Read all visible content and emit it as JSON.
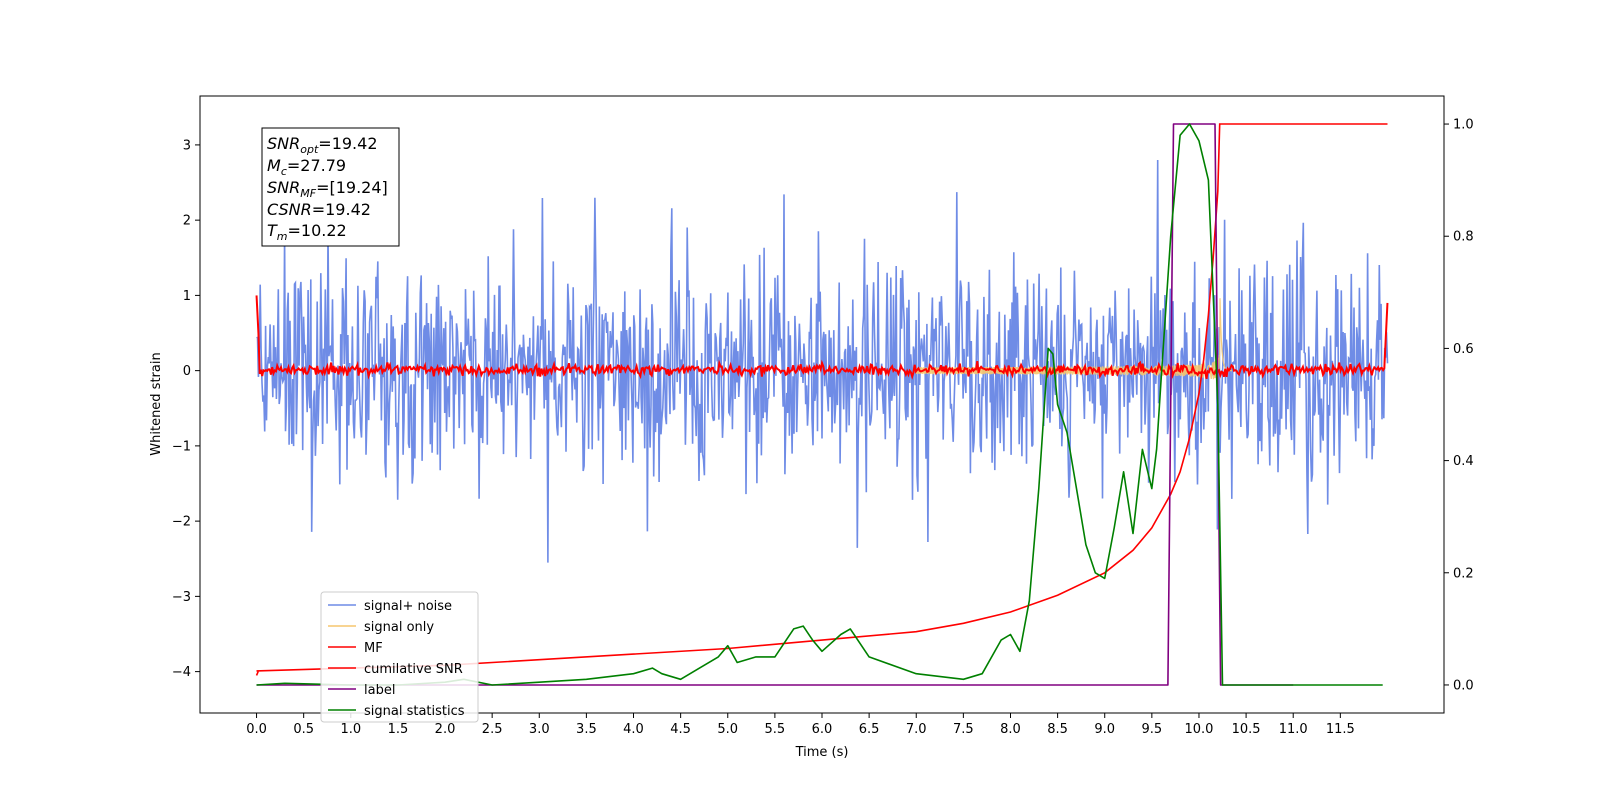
{
  "chart_data": {
    "type": "line",
    "xlabel": "Time (s)",
    "ylabel": "Whitened strain",
    "xlim": [
      -0.6,
      12.6
    ],
    "ylim": [
      -4.55,
      3.65
    ],
    "y2lim": [
      -0.05,
      1.05
    ],
    "x_ticks": [
      "0.0",
      "0.5",
      "1.0",
      "1.5",
      "2.0",
      "2.5",
      "3.0",
      "3.5",
      "4.0",
      "4.5",
      "5.0",
      "5.5",
      "6.0",
      "6.5",
      "7.0",
      "7.5",
      "8.0",
      "8.5",
      "9.0",
      "9.5",
      "10.0",
      "10.5",
      "11.0",
      "11.5"
    ],
    "y_ticks": [
      "3",
      "2",
      "1",
      "0",
      "−1",
      "−2",
      "−3",
      "−4"
    ],
    "y2_ticks": [
      "1.0",
      "0.8",
      "0.6",
      "0.4",
      "0.2",
      "0.0"
    ],
    "grid": false,
    "legend_position": "lower-left",
    "legend": [
      "signal+ noise",
      "signal only",
      "MF",
      "cumilative SNR",
      "label",
      "signal statistics"
    ],
    "annotation": {
      "snr_opt": "=19.42",
      "mc": "=27.79",
      "snr_mf": "=[19.24]",
      "csnr": "=19.42",
      "tm": "=10.22"
    },
    "series": [
      {
        "name": "signal+ noise",
        "axis": "left",
        "color": "#6f8ce6",
        "note": "whitened noise, sigma ~0.7, t 0 to 12"
      },
      {
        "name": "signal only",
        "axis": "left",
        "color": "#f5c66e",
        "chirp_peak_time": 10.22
      },
      {
        "name": "MF",
        "axis": "left",
        "color": "#ff0000",
        "start": 1.0,
        "end": 0.9
      },
      {
        "name": "cumilative SNR",
        "axis": "right",
        "color": "#ff0000",
        "x": [
          0.0,
          1.0,
          2.0,
          3.0,
          4.0,
          5.0,
          6.0,
          7.0,
          7.5,
          8.0,
          8.5,
          9.0,
          9.3,
          9.5,
          9.7,
          9.8,
          9.9,
          10.0,
          10.05,
          10.1,
          10.15,
          10.2,
          10.22,
          11.0,
          12.0
        ],
        "values": [
          0.025,
          0.03,
          0.035,
          0.045,
          0.055,
          0.065,
          0.08,
          0.095,
          0.11,
          0.13,
          0.16,
          0.2,
          0.24,
          0.28,
          0.34,
          0.38,
          0.44,
          0.52,
          0.58,
          0.66,
          0.76,
          0.88,
          1.0,
          1.0,
          1.0
        ]
      },
      {
        "name": "label",
        "axis": "right",
        "color": "#800080",
        "x": [
          0.0,
          9.67,
          9.73,
          10.17,
          10.23,
          11.0
        ],
        "values": [
          0.0,
          0.0,
          1.0,
          1.0,
          0.0,
          0.0
        ]
      },
      {
        "name": "signal statistics",
        "axis": "right",
        "color": "#008000",
        "x": [
          0.0,
          0.3,
          1.0,
          1.5,
          2.0,
          2.2,
          2.5,
          3.0,
          3.5,
          4.0,
          4.2,
          4.3,
          4.5,
          4.7,
          4.9,
          5.0,
          5.1,
          5.3,
          5.5,
          5.7,
          5.8,
          5.9,
          6.0,
          6.2,
          6.3,
          6.5,
          7.0,
          7.5,
          7.7,
          7.9,
          8.0,
          8.1,
          8.2,
          8.3,
          8.4,
          8.45,
          8.5,
          8.6,
          8.7,
          8.8,
          8.9,
          9.0,
          9.1,
          9.2,
          9.3,
          9.4,
          9.5,
          9.55,
          9.6,
          9.7,
          9.8,
          9.9,
          10.0,
          10.1,
          10.2,
          10.25,
          10.35,
          11.0,
          11.95
        ],
        "values": [
          0.0,
          0.003,
          0.0,
          0.0,
          0.005,
          0.01,
          0.0,
          0.005,
          0.01,
          0.02,
          0.03,
          0.02,
          0.01,
          0.03,
          0.05,
          0.07,
          0.04,
          0.05,
          0.05,
          0.1,
          0.105,
          0.08,
          0.06,
          0.09,
          0.1,
          0.05,
          0.02,
          0.01,
          0.02,
          0.08,
          0.09,
          0.06,
          0.15,
          0.35,
          0.6,
          0.59,
          0.5,
          0.45,
          0.35,
          0.25,
          0.2,
          0.19,
          0.28,
          0.38,
          0.27,
          0.42,
          0.35,
          0.42,
          0.55,
          0.8,
          0.98,
          1.0,
          0.97,
          0.9,
          0.5,
          0.0,
          0.0,
          0.0,
          0.0
        ]
      }
    ]
  }
}
